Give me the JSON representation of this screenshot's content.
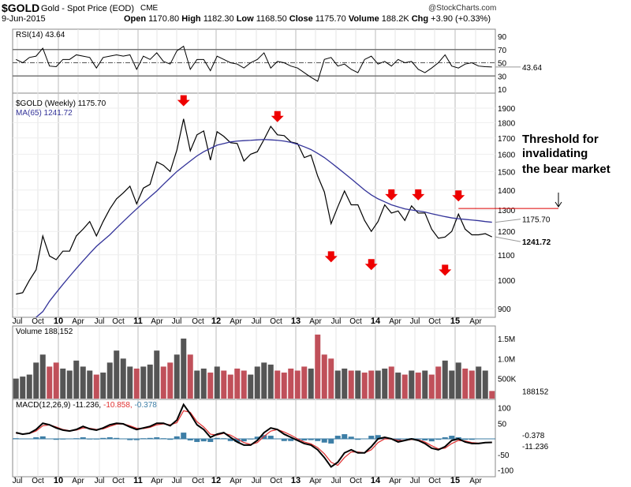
{
  "header": {
    "symbol": "$GOLD",
    "name": "Gold - Spot Price (EOD)",
    "exchange": "CME",
    "date": "9-Jun-2015",
    "brand": "@StockCharts.com",
    "quote": [
      [
        "Open",
        "1170.80"
      ],
      [
        "High",
        "1182.30"
      ],
      [
        "Low",
        "1168.50"
      ],
      [
        "Close",
        "1175.70"
      ],
      [
        "Volume",
        "188.2K"
      ],
      [
        "Chg",
        "+3.90 (+0.33%)"
      ]
    ]
  },
  "chart_data": [
    {
      "type": "line",
      "panel": "rsi",
      "title": "RSI(14) 43.64",
      "label_value": "43.64",
      "ylim": [
        0,
        100
      ],
      "ticks": [
        10,
        30,
        50,
        70,
        90
      ],
      "values": [
        55,
        50,
        58,
        60,
        72,
        45,
        44,
        55,
        55,
        62,
        60,
        58,
        42,
        58,
        60,
        62,
        60,
        62,
        40,
        60,
        55,
        65,
        52,
        48,
        68,
        75,
        40,
        55,
        55,
        38,
        60,
        55,
        50,
        48,
        42,
        50,
        55,
        65,
        42,
        52,
        50,
        45,
        42,
        35,
        28,
        22,
        55,
        58,
        45,
        48,
        40,
        35,
        55,
        60,
        48,
        52,
        45,
        55,
        50,
        52,
        40,
        35,
        42,
        50,
        62,
        45,
        42,
        48,
        50,
        45,
        44,
        43.64
      ]
    },
    {
      "type": "line",
      "panel": "price",
      "title": "$GOLD (Weekly) 1175.70",
      "scale": "log",
      "ylim": [
        870,
        1980
      ],
      "ticks": [
        900,
        1000,
        1100,
        1200,
        1300,
        1400,
        1500,
        1600,
        1700,
        1800,
        1900
      ],
      "x_start": "2009-07",
      "x_step": "month",
      "series": [
        {
          "name": "$GOLD (Weekly) 1175.70",
          "color": "#000000",
          "values": [
            950,
            955,
            1000,
            1040,
            1180,
            1095,
            1080,
            1115,
            1115,
            1180,
            1210,
            1245,
            1180,
            1245,
            1305,
            1355,
            1385,
            1420,
            1330,
            1410,
            1430,
            1555,
            1535,
            1500,
            1625,
            1825,
            1620,
            1720,
            1745,
            1565,
            1740,
            1710,
            1670,
            1665,
            1560,
            1600,
            1615,
            1690,
            1775,
            1720,
            1715,
            1675,
            1665,
            1580,
            1595,
            1475,
            1390,
            1235,
            1315,
            1395,
            1325,
            1325,
            1250,
            1200,
            1245,
            1325,
            1285,
            1295,
            1250,
            1320,
            1285,
            1285,
            1210,
            1170,
            1175,
            1200,
            1280,
            1210,
            1185,
            1185,
            1190,
            1175.7
          ]
        },
        {
          "name": "MA(65) 1241.72",
          "color": "#333399",
          "values": [
            null,
            null,
            null,
            860,
            890,
            925,
            955,
            985,
            1015,
            1045,
            1075,
            1105,
            1135,
            1160,
            1185,
            1215,
            1245,
            1275,
            1305,
            1335,
            1365,
            1395,
            1430,
            1465,
            1500,
            1530,
            1560,
            1590,
            1615,
            1635,
            1655,
            1665,
            1675,
            1680,
            1683,
            1685,
            1688,
            1690,
            1688,
            1685,
            1680,
            1672,
            1660,
            1645,
            1628,
            1605,
            1580,
            1550,
            1520,
            1490,
            1460,
            1430,
            1400,
            1375,
            1355,
            1340,
            1325,
            1315,
            1305,
            1300,
            1295,
            1290,
            1282,
            1275,
            1268,
            1262,
            1258,
            1255,
            1252,
            1249,
            1245,
            1241.72
          ]
        }
      ],
      "last_labels": [
        "1241.72",
        "1175.70"
      ],
      "annotations": {
        "text_line1": "Threshold for invalidating",
        "text_line2": "the bear market",
        "threshold": 1307,
        "threshold_from": "2015-01",
        "down_arrows_above": [
          "2011-08",
          "2012-10",
          "2014-03",
          "2014-07",
          "2015-01"
        ],
        "down_arrows_below": [
          "2013-06",
          "2013-12",
          "2014-11"
        ]
      }
    },
    {
      "type": "bar",
      "panel": "volume",
      "title": "Volume 188,152",
      "label_value": "188152",
      "ticks": [
        "500K",
        "1.0M",
        "1.5M"
      ],
      "unit": "M",
      "values": [
        0.5,
        0.55,
        0.6,
        0.9,
        1.1,
        0.8,
        0.9,
        0.75,
        0.7,
        0.95,
        0.8,
        0.7,
        0.6,
        0.65,
        0.9,
        1.2,
        1.0,
        0.8,
        0.75,
        0.8,
        0.85,
        1.2,
        0.8,
        0.9,
        1.1,
        1.5,
        1.1,
        0.7,
        0.75,
        0.65,
        0.8,
        0.7,
        0.6,
        0.75,
        0.7,
        0.6,
        0.8,
        0.9,
        0.85,
        0.7,
        0.65,
        0.75,
        0.7,
        0.8,
        0.75,
        1.6,
        1.1,
        1.0,
        0.7,
        0.75,
        0.7,
        0.7,
        0.65,
        0.7,
        0.7,
        0.75,
        0.8,
        0.65,
        0.6,
        0.7,
        0.65,
        0.7,
        0.6,
        0.8,
        0.95,
        0.7,
        0.9,
        0.75,
        0.7,
        0.8,
        0.7,
        0.19
      ],
      "colors": {
        "up": "#555555",
        "down": "#c0505a"
      }
    },
    {
      "type": "line",
      "panel": "macd",
      "title": "MACD(12,26,9)",
      "legend": [
        "-11.236",
        "-10.858",
        "-0.378"
      ],
      "ticks": [
        100,
        50,
        -50,
        -100
      ],
      "last_labels": [
        "-0.378",
        "-11.236"
      ],
      "series": [
        {
          "name": "MACD",
          "color": "#000000",
          "values": [
            20,
            15,
            18,
            30,
            50,
            45,
            35,
            28,
            25,
            30,
            40,
            32,
            28,
            35,
            45,
            50,
            48,
            38,
            30,
            35,
            40,
            50,
            50,
            42,
            60,
            110,
            80,
            45,
            30,
            5,
            15,
            20,
            5,
            -10,
            -20,
            -20,
            -5,
            20,
            35,
            30,
            15,
            5,
            -5,
            -15,
            -20,
            -35,
            -60,
            -90,
            -75,
            -45,
            -35,
            -45,
            -45,
            -25,
            0,
            5,
            0,
            -10,
            -5,
            0,
            -5,
            -15,
            -30,
            -35,
            -25,
            -5,
            0,
            -10,
            -15,
            -15,
            -12,
            -11.236
          ]
        },
        {
          "name": "Signal",
          "color": "#e03030",
          "values": [
            18,
            16,
            17,
            25,
            42,
            45,
            38,
            30,
            26,
            28,
            35,
            34,
            30,
            32,
            40,
            47,
            48,
            42,
            34,
            33,
            37,
            45,
            48,
            45,
            52,
            90,
            85,
            55,
            38,
            15,
            12,
            18,
            12,
            0,
            -12,
            -18,
            -12,
            8,
            25,
            30,
            22,
            12,
            0,
            -10,
            -16,
            -28,
            -48,
            -75,
            -85,
            -60,
            -42,
            -42,
            -45,
            -35,
            -12,
            0,
            0,
            -5,
            -5,
            -2,
            -3,
            -10,
            -22,
            -32,
            -30,
            -15,
            -5,
            -7,
            -12,
            -14,
            -12,
            -10.858
          ]
        },
        {
          "name": "Histogram",
          "color": "#3d7ea6",
          "values": [
            2,
            -1,
            1,
            5,
            8,
            0,
            -3,
            -2,
            -1,
            2,
            5,
            -2,
            -2,
            3,
            5,
            3,
            0,
            -4,
            -4,
            2,
            3,
            5,
            2,
            -3,
            8,
            20,
            -5,
            -10,
            -8,
            -10,
            3,
            2,
            -7,
            -10,
            -8,
            -2,
            7,
            12,
            10,
            0,
            -7,
            -7,
            -5,
            -5,
            -4,
            -7,
            -12,
            -15,
            10,
            15,
            7,
            -3,
            0,
            10,
            12,
            5,
            0,
            -5,
            0,
            2,
            -2,
            -5,
            -8,
            -3,
            5,
            10,
            5,
            -3,
            -3,
            -1,
            0,
            -0.378
          ]
        }
      ]
    }
  ],
  "x_labels": [
    "Jul",
    "Oct",
    "10",
    "Apr",
    "Jul",
    "Oct",
    "11",
    "Apr",
    "Jul",
    "Oct",
    "12",
    "Apr",
    "Jul",
    "Oct",
    "13",
    "Apr",
    "Jul",
    "Oct",
    "14",
    "Apr",
    "Jul",
    "Oct",
    "15",
    "Apr"
  ]
}
